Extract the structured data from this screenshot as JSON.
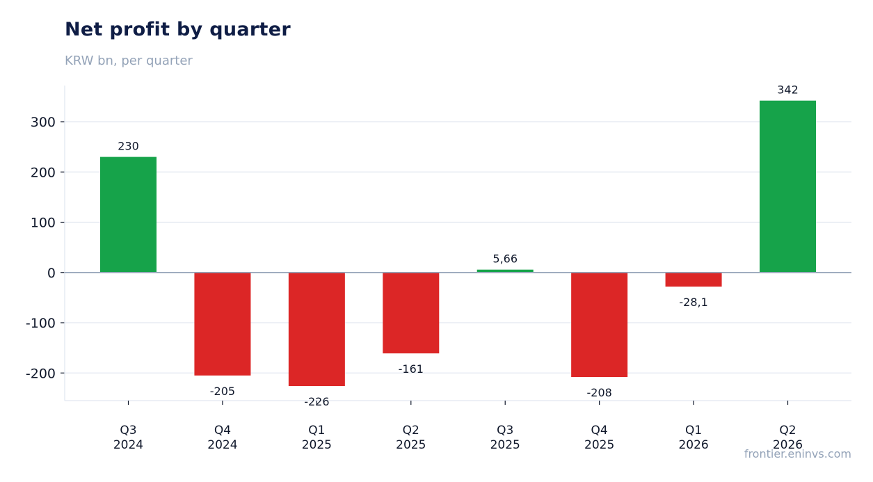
{
  "title": "Net profit by quarter",
  "subtitle": "KRW bn, per quarter",
  "source": "frontier.eninvs.com",
  "colors": {
    "positive": "#16a34a",
    "negative": "#dc2626",
    "grid": "#e2e8f0",
    "zero_line": "#94a3b8",
    "text": "#0f172a"
  },
  "chart_data": {
    "type": "bar",
    "categories": [
      [
        "Q3",
        "2024"
      ],
      [
        "Q4",
        "2024"
      ],
      [
        "Q1",
        "2025"
      ],
      [
        "Q2",
        "2025"
      ],
      [
        "Q3",
        "2025"
      ],
      [
        "Q4",
        "2025"
      ],
      [
        "Q1",
        "2026"
      ],
      [
        "Q2",
        "2026"
      ]
    ],
    "values": [
      230,
      -205,
      -226,
      -161,
      5.66,
      -208,
      -28.1,
      342
    ],
    "value_labels": [
      "230",
      "-205",
      "-226",
      "-161",
      "5,66",
      "-208",
      "-28,1",
      "342"
    ],
    "y_ticks": [
      300,
      200,
      100,
      0,
      -100,
      -200
    ],
    "y_tick_labels": [
      "300",
      "200",
      "100",
      "0",
      "-100",
      "-200"
    ],
    "ylim": [
      -255,
      372
    ],
    "grid": true,
    "legend": false
  }
}
